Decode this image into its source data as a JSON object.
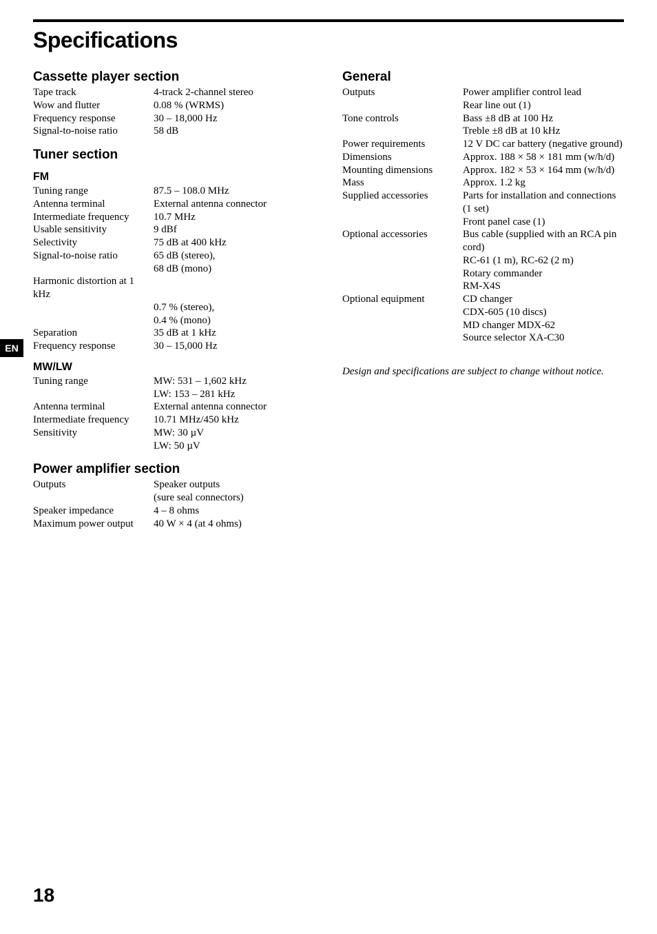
{
  "page_title": "Specifications",
  "page_number": "18",
  "lang_tab": "EN",
  "notice": "Design and specifications are subject to change without notice.",
  "left_sections": [
    {
      "heading": "Cassette player section",
      "sub": null,
      "rows": [
        {
          "label": "Tape track",
          "value": "4-track 2-channel stereo"
        },
        {
          "label": "Wow and flutter",
          "value": "0.08 % (WRMS)"
        },
        {
          "label": "Frequency response",
          "value": "30 – 18,000 Hz"
        },
        {
          "label": "Signal-to-noise ratio",
          "value": "58 dB"
        }
      ]
    },
    {
      "heading": "Tuner section",
      "sub": "FM",
      "rows": [
        {
          "label": "Tuning range",
          "value": "87.5 – 108.0 MHz"
        },
        {
          "label": "Antenna terminal",
          "value": "External antenna connector"
        },
        {
          "label": "Intermediate frequency",
          "value": "10.7 MHz"
        },
        {
          "label": "Usable sensitivity",
          "value": "9 dBf"
        },
        {
          "label": "Selectivity",
          "value": "75 dB at 400 kHz"
        },
        {
          "label": "Signal-to-noise ratio",
          "value": "65 dB (stereo),\n68 dB (mono)"
        },
        {
          "label": "Harmonic distortion at 1 kHz",
          "value": ""
        },
        {
          "label": "",
          "value": "0.7 % (stereo),\n0.4 % (mono)"
        },
        {
          "label": "Separation",
          "value": "35 dB at 1 kHz"
        },
        {
          "label": "Frequency response",
          "value": "30 – 15,000 Hz"
        }
      ]
    },
    {
      "heading": null,
      "sub": "MW/LW",
      "rows": [
        {
          "label": "Tuning range",
          "value": "MW:  531 – 1,602 kHz\nLW:  153 – 281 kHz"
        },
        {
          "label": "Antenna terminal",
          "value": "External antenna connector"
        },
        {
          "label": "Intermediate frequency",
          "value": "10.71 MHz/450 kHz"
        },
        {
          "label": "Sensitivity",
          "value": "MW:  30 µV\nLW:  50 µV"
        }
      ]
    },
    {
      "heading": "Power amplifier section",
      "sub": null,
      "rows": [
        {
          "label": "Outputs",
          "value": "Speaker outputs\n(sure seal connectors)"
        },
        {
          "label": "Speaker impedance",
          "value": "4 – 8 ohms"
        },
        {
          "label": "Maximum power output",
          "value": "40 W × 4 (at 4 ohms)"
        }
      ]
    }
  ],
  "right_sections": [
    {
      "heading": "General",
      "sub": null,
      "rows": [
        {
          "label": "Outputs",
          "value": "Power amplifier control lead\nRear line out (1)"
        },
        {
          "label": "Tone controls",
          "value": "Bass ±8 dB at 100 Hz\nTreble ±8 dB at 10 kHz"
        },
        {
          "label": "Power requirements",
          "value": "12 V DC car battery (negative ground)"
        },
        {
          "label": "Dimensions",
          "value": "Approx. 188 × 58 × 181 mm (w/h/d)"
        },
        {
          "label": "Mounting dimensions",
          "value": "Approx. 182 × 53 × 164 mm (w/h/d)"
        },
        {
          "label": "Mass",
          "value": "Approx. 1.2 kg"
        },
        {
          "label": "Supplied accessories",
          "value": "Parts for installation and connections (1 set)\nFront panel case (1)"
        },
        {
          "label": "Optional accessories",
          "value": "Bus cable (supplied with an RCA pin cord)\nRC-61 (1 m), RC-62 (2 m)\nRotary commander\nRM-X4S"
        },
        {
          "label": "Optional equipment",
          "value": "CD changer\nCDX-605 (10 discs)\nMD changer MDX-62\nSource selector XA-C30"
        }
      ]
    }
  ]
}
